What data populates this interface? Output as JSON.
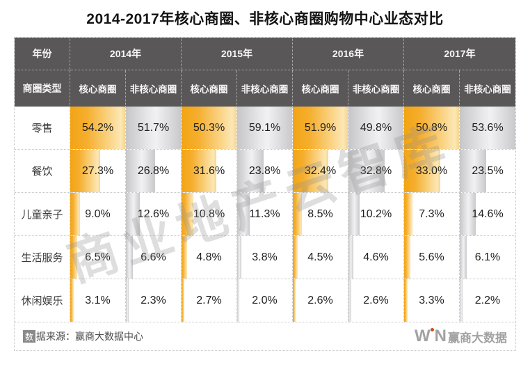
{
  "title": "2014-2017年核心商圈、非核心商圈购物中心业态对比",
  "watermark": "商业地产云智库",
  "colors": {
    "header_bg": "#595757",
    "core_accent": "#F5A51C",
    "noncore_accent": "#CBCBCD",
    "value_text": "#1E1E1E"
  },
  "table": {
    "corner_year_label": "年份",
    "corner_type_label": "商圈类型",
    "years": [
      "2014年",
      "2015年",
      "2016年",
      "2017年"
    ],
    "subheaders": [
      "核心商圈",
      "非核心商圈"
    ],
    "rows": [
      {
        "label": "零售",
        "values": [
          "54.2%",
          "51.7%",
          "50.3%",
          "59.1%",
          "51.9%",
          "49.8%",
          "50.8%",
          "53.6%"
        ]
      },
      {
        "label": "餐饮",
        "values": [
          "27.3%",
          "26.8%",
          "31.6%",
          "23.8%",
          "32.4%",
          "32.8%",
          "33.0%",
          "23.5%"
        ]
      },
      {
        "label": "儿童亲子",
        "values": [
          "9.0%",
          "12.6%",
          "10.8%",
          "11.3%",
          "8.5%",
          "10.2%",
          "7.3%",
          "14.6%"
        ]
      },
      {
        "label": "生活服务",
        "values": [
          "6.5%",
          "6.6%",
          "4.8%",
          "3.8%",
          "4.5%",
          "4.6%",
          "5.6%",
          "6.1%"
        ]
      },
      {
        "label": "休闲娱乐",
        "values": [
          "3.1%",
          "2.3%",
          "2.7%",
          "2.0%",
          "2.6%",
          "2.6%",
          "3.3%",
          "2.2%"
        ]
      }
    ]
  },
  "footer": {
    "source_badge": "数",
    "source_text": "据来源：赢商大数据中心",
    "logo_w": "W",
    "logo_n": "N",
    "logo_text": "赢商大数据"
  },
  "chart_data": {
    "type": "table",
    "title": "2014-2017年核心商圈、非核心商圈购物中心业态对比",
    "row_header": "商圈类型",
    "col_groups": [
      "2014年",
      "2015年",
      "2016年",
      "2017年"
    ],
    "col_subheaders": [
      "核心商圈",
      "非核心商圈"
    ],
    "categories": [
      "零售",
      "餐饮",
      "儿童亲子",
      "生活服务",
      "休闲娱乐"
    ],
    "series": [
      {
        "name": "2014年 核心商圈",
        "values": [
          54.2,
          27.3,
          9.0,
          6.5,
          3.1
        ]
      },
      {
        "name": "2014年 非核心商圈",
        "values": [
          51.7,
          26.8,
          12.6,
          6.6,
          2.3
        ]
      },
      {
        "name": "2015年 核心商圈",
        "values": [
          50.3,
          31.6,
          10.8,
          4.8,
          2.7
        ]
      },
      {
        "name": "2015年 非核心商圈",
        "values": [
          59.1,
          23.8,
          11.3,
          3.8,
          2.0
        ]
      },
      {
        "name": "2016年 核心商圈",
        "values": [
          51.9,
          32.4,
          8.5,
          4.5,
          2.6
        ]
      },
      {
        "name": "2016年 非核心商圈",
        "values": [
          49.8,
          32.8,
          10.2,
          4.6,
          2.6
        ]
      },
      {
        "name": "2017年 核心商圈",
        "values": [
          50.8,
          33.0,
          7.3,
          5.6,
          3.3
        ]
      },
      {
        "name": "2017年 非核心商圈",
        "values": [
          53.6,
          23.5,
          14.6,
          6.1,
          2.2
        ]
      }
    ],
    "unit": "%",
    "source": "赢商大数据中心"
  }
}
